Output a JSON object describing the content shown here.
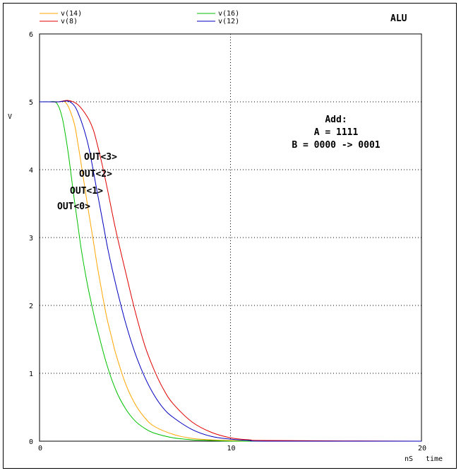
{
  "chart_data": {
    "type": "line",
    "title": "ALU",
    "xlabel": "time",
    "xunit": "nS",
    "ylabel": "V",
    "xlim": [
      0,
      20
    ],
    "ylim": [
      0,
      6
    ],
    "xticks": [
      "0",
      "10",
      "20"
    ],
    "yticks": [
      "0",
      "1",
      "2",
      "3",
      "4",
      "5",
      "6"
    ],
    "grid": true,
    "legend_position": "top",
    "annotation": {
      "line1": "Add:",
      "line2": "A = 1111",
      "line3": "B = 0000 -> 0001"
    },
    "curve_labels": [
      "OUT<3>",
      "OUT<2>",
      "OUT<1>",
      "OUT<0>"
    ],
    "series": [
      {
        "name": "v(14)",
        "color": "#ffa500",
        "x": [
          0,
          0.5,
          1.0,
          1.4,
          1.8,
          2.0,
          2.2,
          2.5,
          2.8,
          3.0,
          3.2,
          3.5,
          3.8,
          4.0,
          4.5,
          5.0,
          5.5,
          6.0,
          7.0,
          8.0,
          9.0,
          10.0,
          11.0,
          12.0,
          20.0
        ],
        "y": [
          5.0,
          5.0,
          5.0,
          4.98,
          4.7,
          4.4,
          4.05,
          3.5,
          2.98,
          2.62,
          2.3,
          1.85,
          1.5,
          1.28,
          0.85,
          0.55,
          0.35,
          0.22,
          0.1,
          0.04,
          0.02,
          0.01,
          0.0,
          0.0,
          0.0
        ]
      },
      {
        "name": "v(8)",
        "color": "#e00000",
        "x": [
          0,
          0.5,
          1.0,
          1.5,
          2.0,
          2.5,
          2.8,
          3.0,
          3.3,
          3.6,
          4.0,
          4.5,
          5.0,
          5.5,
          6.0,
          6.5,
          7.0,
          8.0,
          9.0,
          10.0,
          11.0,
          12.0,
          20.0
        ],
        "y": [
          5.0,
          5.0,
          5.0,
          5.02,
          4.96,
          4.78,
          4.6,
          4.4,
          4.05,
          3.65,
          3.1,
          2.5,
          1.92,
          1.42,
          1.05,
          0.76,
          0.55,
          0.28,
          0.13,
          0.05,
          0.02,
          0.01,
          0.0
        ]
      },
      {
        "name": "v(16)",
        "color": "#00c000",
        "x": [
          0,
          0.5,
          0.9,
          1.2,
          1.5,
          1.8,
          2.0,
          2.2,
          2.5,
          2.8,
          3.0,
          3.5,
          4.0,
          4.5,
          5.0,
          5.5,
          6.0,
          7.0,
          8.0,
          9.0,
          10.0,
          11.0,
          20.0
        ],
        "y": [
          5.0,
          5.0,
          4.98,
          4.75,
          4.25,
          3.6,
          3.2,
          2.8,
          2.32,
          1.92,
          1.68,
          1.15,
          0.75,
          0.48,
          0.3,
          0.19,
          0.12,
          0.05,
          0.02,
          0.01,
          0.0,
          0.0,
          0.0
        ]
      },
      {
        "name": "v(12)",
        "color": "#0000c0",
        "x": [
          0,
          0.5,
          1.0,
          1.5,
          1.8,
          2.0,
          2.3,
          2.6,
          3.0,
          3.3,
          3.6,
          4.0,
          4.5,
          5.0,
          5.5,
          6.0,
          6.5,
          7.0,
          8.0,
          9.0,
          10.0,
          11.0,
          12.0,
          20.0
        ],
        "y": [
          5.0,
          5.0,
          5.0,
          5.01,
          4.95,
          4.85,
          4.62,
          4.3,
          3.7,
          3.25,
          2.8,
          2.3,
          1.75,
          1.3,
          0.95,
          0.68,
          0.48,
          0.35,
          0.17,
          0.07,
          0.03,
          0.01,
          0.0,
          0.0
        ]
      }
    ]
  }
}
